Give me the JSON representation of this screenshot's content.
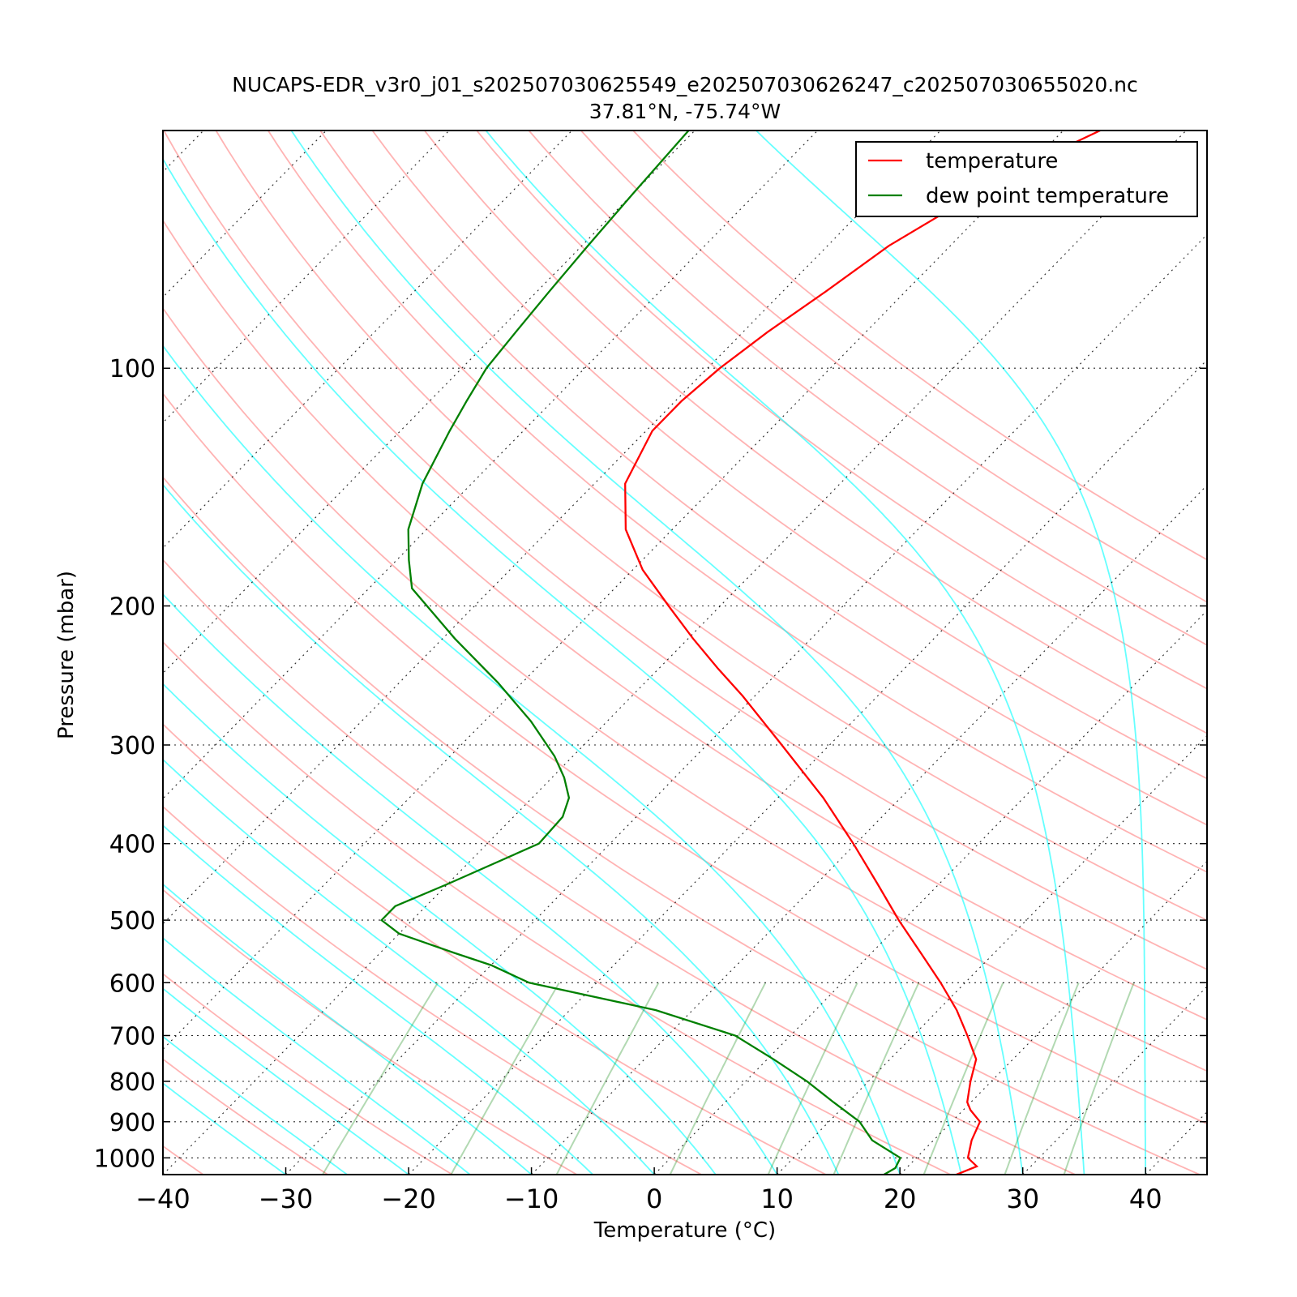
{
  "chart_data": {
    "type": "line",
    "title": "NUCAPS-EDR_v3r0_j01_s202507030625549_e202507030626247_c202507030655020.nc",
    "subtitle": "37.81°N, -75.74°W",
    "xlabel": "Temperature (°C)",
    "ylabel": "Pressure (mbar)",
    "xlim": [
      -40,
      45
    ],
    "ylim": [
      1050,
      50
    ],
    "y_scale": "log",
    "skew": 0.98,
    "grid": true,
    "legend_position": "top-right",
    "x_ticks": [
      "−40",
      "−30",
      "−20",
      "−10",
      "0",
      "10",
      "20",
      "30",
      "40"
    ],
    "x_tick_values": [
      -40,
      -30,
      -20,
      -10,
      0,
      10,
      20,
      30,
      40
    ],
    "y_ticks": [
      "100",
      "200",
      "300",
      "400",
      "500",
      "600",
      "700",
      "800",
      "900",
      "1000"
    ],
    "y_tick_values": [
      100,
      200,
      300,
      400,
      500,
      600,
      700,
      800,
      900,
      1000
    ],
    "series": [
      {
        "name": "temperature",
        "color": "#ff0000",
        "points": [
          [
            1050,
            24.6
          ],
          [
            1025,
            25.6
          ],
          [
            1000,
            24.2
          ],
          [
            950,
            23.1
          ],
          [
            900,
            22.3
          ],
          [
            870,
            20.6
          ],
          [
            850,
            19.7
          ],
          [
            800,
            18.3
          ],
          [
            750,
            17.0
          ],
          [
            700,
            14.4
          ],
          [
            650,
            11.5
          ],
          [
            600,
            8.0
          ],
          [
            550,
            4.0
          ],
          [
            500,
            -0.4
          ],
          [
            450,
            -5.0
          ],
          [
            400,
            -10.2
          ],
          [
            350,
            -16.3
          ],
          [
            300,
            -23.9
          ],
          [
            260,
            -31.0
          ],
          [
            240,
            -35.2
          ],
          [
            220,
            -39.6
          ],
          [
            200,
            -44.2
          ],
          [
            180,
            -49.2
          ],
          [
            160,
            -53.8
          ],
          [
            140,
            -57.5
          ],
          [
            120,
            -59.5
          ],
          [
            110,
            -59.5
          ],
          [
            100,
            -59.0
          ],
          [
            90,
            -58.0
          ],
          [
            80,
            -56.5
          ],
          [
            70,
            -55.0
          ],
          [
            60,
            -52.0
          ],
          [
            55,
            -50.0
          ],
          [
            50,
            -47.0
          ]
        ]
      },
      {
        "name": "dew point temperature",
        "color": "#008000",
        "points": [
          [
            1050,
            18.7
          ],
          [
            1030,
            19.1
          ],
          [
            1000,
            18.7
          ],
          [
            950,
            15.0
          ],
          [
            900,
            12.5
          ],
          [
            850,
            8.8
          ],
          [
            800,
            5.0
          ],
          [
            750,
            0.5
          ],
          [
            700,
            -4.5
          ],
          [
            650,
            -13.0
          ],
          [
            600,
            -25.5
          ],
          [
            570,
            -30.0
          ],
          [
            550,
            -34.0
          ],
          [
            520,
            -40.0
          ],
          [
            500,
            -42.5
          ],
          [
            480,
            -42.5
          ],
          [
            450,
            -40.0
          ],
          [
            400,
            -35.8
          ],
          [
            370,
            -36.0
          ],
          [
            350,
            -37.0
          ],
          [
            330,
            -39.0
          ],
          [
            310,
            -41.5
          ],
          [
            280,
            -46.2
          ],
          [
            250,
            -52.0
          ],
          [
            220,
            -59.0
          ],
          [
            190,
            -66.5
          ],
          [
            175,
            -69.0
          ],
          [
            160,
            -71.5
          ],
          [
            140,
            -74.0
          ],
          [
            120,
            -76.0
          ],
          [
            110,
            -77.0
          ],
          [
            100,
            -78.0
          ],
          [
            90,
            -78.5
          ],
          [
            80,
            -79.0
          ],
          [
            70,
            -79.5
          ],
          [
            60,
            -80.0
          ],
          [
            50,
            -80.5
          ]
        ]
      }
    ]
  }
}
